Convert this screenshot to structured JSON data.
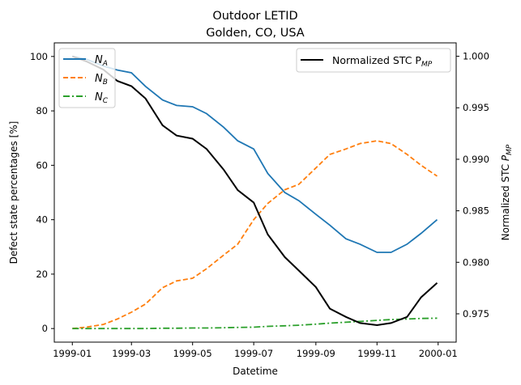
{
  "chart_data": {
    "type": "line",
    "title": "Outdoor LETID",
    "subtitle": "Golden, CO, USA",
    "xlabel": "Datetime",
    "ylabel": "Defect state percentages [%]",
    "y2label": "Normalized STC P_MP",
    "xlim": [
      "1998-12-14",
      "2000-01-19"
    ],
    "ylim": [
      -5,
      105
    ],
    "y2lim": [
      0.97225,
      1.0013
    ],
    "xticks": [
      "1999-01",
      "1999-03",
      "1999-05",
      "1999-07",
      "1999-09",
      "1999-11",
      "2000-01"
    ],
    "yticks": [
      0,
      20,
      40,
      60,
      80,
      100
    ],
    "y2ticks": [
      "0.975",
      "0.980",
      "0.985",
      "0.990",
      "0.995",
      "1.000"
    ],
    "grid": false,
    "dates": [
      "1999-01-01",
      "1999-01-15",
      "1999-02-01",
      "1999-02-15",
      "1999-03-01",
      "1999-03-15",
      "1999-04-01",
      "1999-04-15",
      "1999-05-01",
      "1999-05-15",
      "1999-06-01",
      "1999-06-15",
      "1999-07-01",
      "1999-07-15",
      "1999-08-01",
      "1999-08-15",
      "1999-09-01",
      "1999-09-15",
      "1999-10-01",
      "1999-10-15",
      "1999-11-01",
      "1999-11-15",
      "1999-12-01",
      "1999-12-15",
      "1999-12-31"
    ],
    "series": [
      {
        "name": "N_A",
        "axis": "left",
        "color": "#1f77b4",
        "dash": "solid",
        "values": [
          100,
          99,
          96.5,
          95,
          94,
          89,
          84,
          82,
          81.5,
          79,
          74,
          69,
          66,
          57,
          50,
          47,
          42,
          38,
          33,
          31,
          28,
          28,
          31,
          35,
          40
        ]
      },
      {
        "name": "N_B",
        "axis": "left",
        "color": "#ff7f0e",
        "dash": "dashed",
        "values": [
          0,
          0.5,
          1.5,
          3.5,
          6,
          9,
          15,
          17.5,
          18.5,
          22,
          27,
          31,
          40,
          46,
          51,
          53,
          59,
          64,
          66,
          68,
          69,
          68,
          64,
          60,
          56
        ]
      },
      {
        "name": "N_C",
        "axis": "left",
        "color": "#2ca02c",
        "dash": "dashdot",
        "values": [
          0,
          0,
          0,
          0,
          0,
          0,
          0.1,
          0.1,
          0.2,
          0.2,
          0.3,
          0.4,
          0.5,
          0.8,
          1.0,
          1.2,
          1.6,
          2.0,
          2.3,
          2.6,
          3.0,
          3.3,
          3.5,
          3.7,
          3.8
        ]
      },
      {
        "name": "Normalized STC P_MP",
        "axis": "right",
        "color": "#000000",
        "dash": "solid",
        "values": [
          1.0,
          0.9995,
          0.9987,
          0.9976,
          0.9971,
          0.9959,
          0.9933,
          0.9923,
          0.992,
          0.991,
          0.989,
          0.987,
          0.9858,
          0.9827,
          0.9805,
          0.9792,
          0.9776,
          0.9755,
          0.9747,
          0.9741,
          0.9739,
          0.9741,
          0.9747,
          0.9766,
          0.978
        ]
      }
    ],
    "legend_left": {
      "placement": "upper-left",
      "entries": [
        "N",
        "N",
        "N"
      ],
      "subs": [
        "A",
        "B",
        "C"
      ]
    },
    "legend_right": {
      "placement": "upper-right",
      "text": "Normalized STC P",
      "sub": "MP"
    }
  }
}
